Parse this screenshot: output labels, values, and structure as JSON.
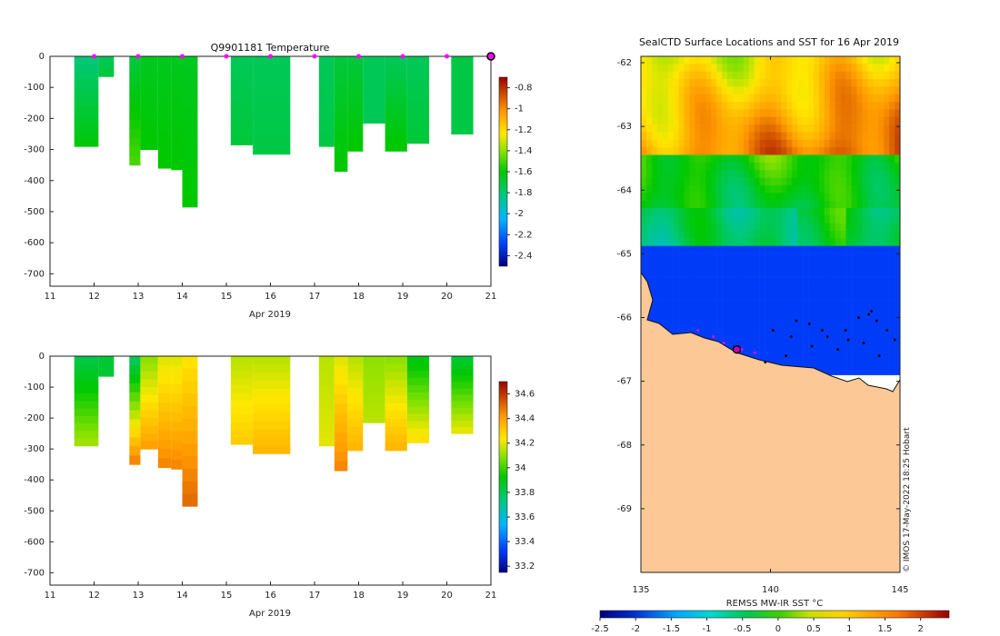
{
  "chart_data": [
    {
      "type": "heatmap",
      "title": "Q9901181  Temperature",
      "xlabel": "Apr 2019",
      "xlim": [
        11,
        21
      ],
      "ylim": [
        -740,
        0
      ],
      "xticks": [
        "11",
        "12",
        "13",
        "14",
        "15",
        "16",
        "17",
        "18",
        "19",
        "20",
        "21"
      ],
      "yticks": [
        "0",
        "-100",
        "-200",
        "-300",
        "-400",
        "-500",
        "-600",
        "-700"
      ],
      "colorbar": {
        "ticks": [
          "-0.8",
          "-1",
          "-1.2",
          "-1.4",
          "-1.6",
          "-1.8",
          "-2",
          "-2.2",
          "-2.4"
        ],
        "range": [
          -2.5,
          -0.7
        ]
      },
      "profiles": [
        {
          "t0": 11.55,
          "t1": 12.1,
          "depth": 290,
          "top": -1.8,
          "bottom": -1.62
        },
        {
          "t0": 12.1,
          "t1": 12.45,
          "depth": 65,
          "top": -1.75,
          "bottom": -1.7
        },
        {
          "t0": 12.8,
          "t1": 13.05,
          "depth": 350,
          "top": -1.7,
          "bottom": -1.5
        },
        {
          "t0": 13.05,
          "t1": 13.45,
          "depth": 300,
          "top": -1.65,
          "bottom": -1.6
        },
        {
          "t0": 13.45,
          "t1": 13.75,
          "depth": 360,
          "top": -1.65,
          "bottom": -1.6
        },
        {
          "t0": 13.75,
          "t1": 14.0,
          "depth": 365,
          "top": -1.65,
          "bottom": -1.6
        },
        {
          "t0": 14.0,
          "t1": 14.35,
          "depth": 485,
          "top": -1.65,
          "bottom": -1.6
        },
        {
          "t0": 15.1,
          "t1": 15.6,
          "depth": 285,
          "top": -1.75,
          "bottom": -1.7
        },
        {
          "t0": 15.6,
          "t1": 16.45,
          "depth": 315,
          "top": -1.75,
          "bottom": -1.72
        },
        {
          "t0": 17.1,
          "t1": 17.45,
          "depth": 290,
          "top": -1.75,
          "bottom": -1.72
        },
        {
          "t0": 17.45,
          "t1": 17.75,
          "depth": 370,
          "top": -1.7,
          "bottom": -1.6
        },
        {
          "t0": 17.75,
          "t1": 18.1,
          "depth": 305,
          "top": -1.7,
          "bottom": -1.6
        },
        {
          "t0": 18.1,
          "t1": 18.6,
          "depth": 215,
          "top": -1.75,
          "bottom": -1.75
        },
        {
          "t0": 18.6,
          "t1": 19.1,
          "depth": 305,
          "top": -1.75,
          "bottom": -1.6
        },
        {
          "t0": 19.1,
          "t1": 19.6,
          "depth": 280,
          "top": -1.75,
          "bottom": -1.7
        },
        {
          "t0": 20.1,
          "t1": 20.6,
          "depth": 250,
          "top": -1.72,
          "bottom": -1.72
        }
      ],
      "markers": [
        12,
        13,
        14,
        15,
        16,
        17,
        18,
        19,
        20,
        21
      ]
    },
    {
      "type": "heatmap",
      "title": "",
      "xlabel": "Apr 2019",
      "xlim": [
        11,
        21
      ],
      "ylim": [
        -740,
        0
      ],
      "xticks": [
        "11",
        "12",
        "13",
        "14",
        "15",
        "16",
        "17",
        "18",
        "19",
        "20",
        "21"
      ],
      "yticks": [
        "0",
        "-100",
        "-200",
        "-300",
        "-400",
        "-500",
        "-600",
        "-700"
      ],
      "colorbar": {
        "ticks": [
          "34.6",
          "34.4",
          "34.2",
          "34",
          "33.8",
          "33.6",
          "33.4",
          "33.2"
        ],
        "range": [
          33.15,
          34.7
        ]
      },
      "profiles": [
        {
          "t0": 11.55,
          "t1": 12.1,
          "depth": 290,
          "top": 33.82,
          "bottom": 34.12
        },
        {
          "t0": 12.1,
          "t1": 12.45,
          "depth": 65,
          "top": 33.85,
          "bottom": 33.85
        },
        {
          "t0": 12.8,
          "t1": 13.05,
          "depth": 350,
          "top": 33.8,
          "bottom": 34.45
        },
        {
          "t0": 13.05,
          "t1": 13.45,
          "depth": 300,
          "top": 34.1,
          "bottom": 34.4
        },
        {
          "t0": 13.45,
          "t1": 13.75,
          "depth": 360,
          "top": 34.2,
          "bottom": 34.45
        },
        {
          "t0": 13.75,
          "t1": 14.0,
          "depth": 365,
          "top": 34.2,
          "bottom": 34.45
        },
        {
          "t0": 14.0,
          "t1": 14.35,
          "depth": 485,
          "top": 34.25,
          "bottom": 34.5
        },
        {
          "t0": 15.1,
          "t1": 15.6,
          "depth": 285,
          "top": 34.15,
          "bottom": 34.3
        },
        {
          "t0": 15.6,
          "t1": 16.45,
          "depth": 315,
          "top": 34.15,
          "bottom": 34.35
        },
        {
          "t0": 17.1,
          "t1": 17.45,
          "depth": 290,
          "top": 34.15,
          "bottom": 34.2
        },
        {
          "t0": 17.45,
          "t1": 17.75,
          "depth": 370,
          "top": 34.2,
          "bottom": 34.45
        },
        {
          "t0": 17.75,
          "t1": 18.1,
          "depth": 305,
          "top": 34.15,
          "bottom": 34.35
        },
        {
          "t0": 18.1,
          "t1": 18.6,
          "depth": 215,
          "top": 34.1,
          "bottom": 34.15
        },
        {
          "t0": 18.6,
          "t1": 19.1,
          "depth": 305,
          "top": 34.1,
          "bottom": 34.35
        },
        {
          "t0": 19.1,
          "t1": 19.6,
          "depth": 280,
          "top": 33.9,
          "bottom": 34.25
        },
        {
          "t0": 20.1,
          "t1": 20.6,
          "depth": 250,
          "top": 33.85,
          "bottom": 34.2
        }
      ]
    },
    {
      "type": "heatmap",
      "title": "SealCTD Surface Locations and SST for 16 Apr 2019",
      "xlim": [
        135,
        145
      ],
      "ylim": [
        -70,
        -61.9
      ],
      "xticks": [
        "135",
        "140",
        "145"
      ],
      "yticks": [
        "-62",
        "-63",
        "-64",
        "-65",
        "-66",
        "-67",
        "-68",
        "-69"
      ],
      "colorbar_label": "REMSS MW-IR SST °C",
      "colorbar_ticks": [
        "-2.5",
        "-2",
        "-1.5",
        "-1",
        "-0.5",
        "0",
        "0.5",
        "1",
        "1.5",
        "2"
      ],
      "colorbar_range": [
        -2.5,
        2.4
      ],
      "credit": "© IMOS 17-May-2022 18:25 Hobart",
      "seal_position": [
        138.7,
        -66.5
      ]
    }
  ]
}
